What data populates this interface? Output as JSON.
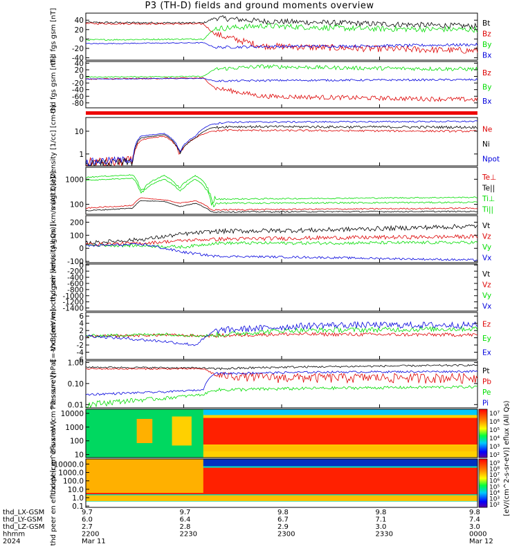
{
  "chart_data": {
    "type": "line",
    "title": "P3 (TH-D) fields and ground moments overview",
    "x_ticks": [
      "2200",
      "2230",
      "2300",
      "2330",
      "0000"
    ],
    "panels": [
      {
        "ylabel": "thd fgs gsm [nT]",
        "scale": "linear",
        "ylim": [
          -45,
          55
        ],
        "ticks": [
          "40",
          "20",
          "0",
          "-20",
          "-40"
        ],
        "tick_values": [
          40,
          20,
          0,
          -20,
          -40
        ],
        "series": [
          {
            "name": "Bt",
            "color": "#000000"
          },
          {
            "name": "Bz",
            "color": "#dd0000"
          },
          {
            "name": "By",
            "color": "#00dd00"
          },
          {
            "name": "Bx",
            "color": "#0000dd"
          }
        ]
      },
      {
        "ylabel": "thd fgs gsm [nT]",
        "scale": "linear",
        "ylim": [
          -95,
          45
        ],
        "ticks": [
          "40",
          "20",
          "0",
          "-20",
          "-40",
          "-60",
          "-80"
        ],
        "tick_values": [
          40,
          20,
          0,
          -20,
          -40,
          -60,
          -80
        ],
        "series": [
          {
            "name": "Bz",
            "color": "#dd0000"
          },
          {
            "name": "By",
            "color": "#00dd00"
          },
          {
            "name": "Bx",
            "color": "#0000dd"
          }
        ]
      },
      {
        "ylabel": "Density [1/cc] [cm-3]",
        "scale": "log",
        "ylim": [
          0.3,
          40
        ],
        "ticks": [
          "10",
          "1"
        ],
        "tick_values": [
          10,
          1
        ],
        "series": [
          {
            "name": "Ne",
            "color": "#dd0000"
          },
          {
            "name": "Ni",
            "color": "#000000"
          },
          {
            "name": "Npot",
            "color": "#0000dd"
          }
        ]
      },
      {
        "ylabel": "magt3 [eV]",
        "scale": "log",
        "ylim": [
          40,
          3000
        ],
        "ticks": [
          "1000",
          "100"
        ],
        "tick_values": [
          1000,
          100
        ],
        "series": [
          {
            "name": "Te⊥",
            "color": "#dd0000"
          },
          {
            "name": "Te||",
            "color": "#000000"
          },
          {
            "name": "Ti⊥",
            "color": "#00dd00"
          },
          {
            "name": "Ti||",
            "color": "#00dd00"
          }
        ]
      },
      {
        "ylabel": "thd peir velocity gsm [km/s (All Qs)]",
        "scale": "linear",
        "ylim": [
          -110,
          250
        ],
        "ticks": [
          "200",
          "100",
          "0",
          "-100"
        ],
        "tick_values": [
          200,
          100,
          0,
          -100
        ],
        "series": [
          {
            "name": "Vt",
            "color": "#000000"
          },
          {
            "name": "Vz",
            "color": "#dd0000"
          },
          {
            "name": "Vy",
            "color": "#00dd00"
          },
          {
            "name": "Vx",
            "color": "#0000dd"
          }
        ]
      },
      {
        "ylabel": "thd peer velocity gsm [km/s (All Qs)]",
        "scale": "linear",
        "ylim": [
          -1500,
          30
        ],
        "ticks": [
          "0",
          "-200",
          "-400",
          "-600",
          "-800",
          "-1000",
          "-1200",
          "-1400"
        ],
        "tick_values": [
          0,
          -200,
          -400,
          -600,
          -800,
          -1000,
          -1200,
          -1400
        ],
        "series": [
          {
            "name": "Vt",
            "color": "#000000"
          },
          {
            "name": "Vz",
            "color": "#dd0000"
          },
          {
            "name": "Vy",
            "color": "#00dd00"
          },
          {
            "name": "Vx",
            "color": "#0000dd"
          }
        ]
      },
      {
        "ylabel": "E=-VxB [mV/m]",
        "scale": "linear",
        "ylim": [
          -6,
          7
        ],
        "ticks": [
          "6",
          "4",
          "2",
          "0",
          "-2",
          "-4",
          "-6"
        ],
        "tick_values": [
          6,
          4,
          2,
          0,
          -2,
          -4,
          -6
        ],
        "series": [
          {
            "name": "Ez",
            "color": "#dd0000"
          },
          {
            "name": "Ey",
            "color": "#00dd00"
          },
          {
            "name": "Ex",
            "color": "#0000dd"
          }
        ]
      },
      {
        "ylabel": "Pressure [nPa]",
        "scale": "log",
        "ylim": [
          0.007,
          1.2
        ],
        "ticks": [
          "1.00",
          "0.10",
          "0.01"
        ],
        "tick_values": [
          1,
          0.1,
          0.01
        ],
        "series": [
          {
            "name": "Pt",
            "color": "#000000"
          },
          {
            "name": "Pb",
            "color": "#dd0000"
          },
          {
            "name": "Pe",
            "color": "#00dd00"
          },
          {
            "name": "Pi",
            "color": "#0000dd"
          }
        ]
      }
    ],
    "spectra": [
      {
        "ylabel": "thd peir en eflux eV (cm^2-s-sr-eV)",
        "ticks": [
          "10000",
          "1000",
          "100",
          "10"
        ],
        "tick_values": [
          10000,
          1000,
          100,
          10
        ],
        "ylim": [
          6,
          20000
        ],
        "colorbar_ticks": [
          "10⁷",
          "10⁶",
          "10⁵",
          "10⁴",
          "10³",
          "10²"
        ]
      },
      {
        "ylabel": "thd peer en eflux eV (cm^2-s-sr-eV)",
        "ticks": [
          "10000.0",
          "1000.0",
          "100.0",
          "10.0",
          "1.0",
          "0.1"
        ],
        "tick_values": [
          10000,
          1000,
          100,
          10,
          1,
          0.1
        ],
        "ylim": [
          0.07,
          40000
        ],
        "colorbar_ticks": [
          "10⁹",
          "10⁸",
          "10⁷",
          "10⁶",
          "10⁵",
          "10⁴",
          "10³",
          "10²"
        ]
      }
    ],
    "colorbar_label": "[eV/(cm^2-s-sr-eV)] eflux (All Qs)",
    "ephemeris": {
      "rows": [
        {
          "label": "thd_LX-GSM",
          "values": [
            "9.7",
            "9.7",
            "9.8",
            "9.8",
            "9.8"
          ]
        },
        {
          "label": "thd_LY-GSM",
          "values": [
            "6.0",
            "6.4",
            "6.7",
            "7.1",
            "7.4"
          ]
        },
        {
          "label": "thd_LZ-GSM",
          "values": [
            "2.7",
            "2.8",
            "2.9",
            "3.0",
            "3.0"
          ]
        },
        {
          "label": "hhmm",
          "values": [
            "2200",
            "2230",
            "2300",
            "2330",
            "0000"
          ]
        },
        {
          "label": "2024",
          "values": [
            "Mar 11",
            "",
            "",
            "",
            "Mar 12"
          ]
        }
      ]
    }
  }
}
